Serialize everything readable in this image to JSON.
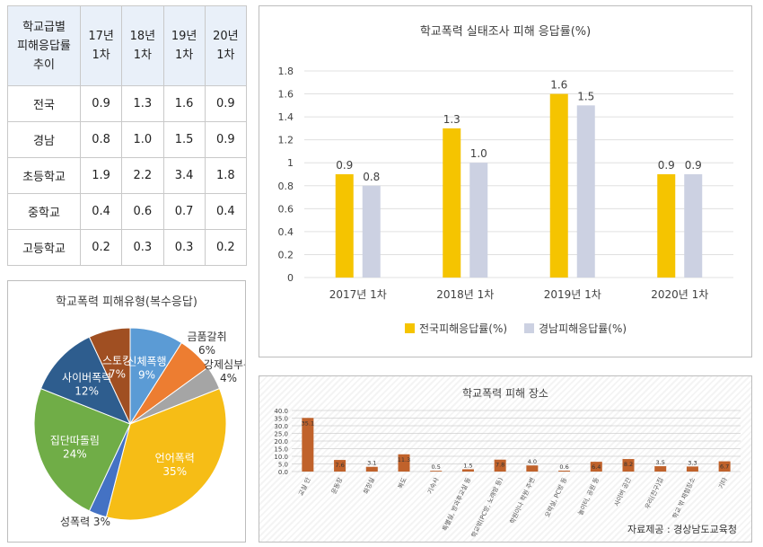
{
  "table": {
    "header": [
      "학교급별",
      "피해응답률",
      "추이"
    ],
    "columns": [
      [
        "17년",
        "1차"
      ],
      [
        "18년",
        "1차"
      ],
      [
        "19년",
        "1차"
      ],
      [
        "20년",
        "1차"
      ]
    ],
    "rows": [
      {
        "label": "전국",
        "values": [
          "0.9",
          "1.3",
          "1.6",
          "0.9"
        ]
      },
      {
        "label": "경남",
        "values": [
          "0.8",
          "1.0",
          "1.5",
          "0.9"
        ]
      },
      {
        "label": "초등학교",
        "values": [
          "1.9",
          "2.2",
          "3.4",
          "1.8"
        ]
      },
      {
        "label": "중학교",
        "values": [
          "0.4",
          "0.6",
          "0.7",
          "0.4"
        ]
      },
      {
        "label": "고등학교",
        "values": [
          "0.2",
          "0.3",
          "0.3",
          "0.2"
        ]
      }
    ]
  },
  "chart_data": [
    {
      "type": "bar",
      "title": "학교폭력 실태조사 피해 응답률(%)",
      "categories": [
        "2017년 1차",
        "2018년 1차",
        "2019년 1차",
        "2020년 1차"
      ],
      "series": [
        {
          "name": "전국피해응답률(%)",
          "values": [
            0.9,
            1.3,
            1.6,
            0.9
          ],
          "labels": [
            "0.9",
            "1.3",
            "1.6",
            "0.9"
          ],
          "color": "#f5c400"
        },
        {
          "name": "경남피해응답률(%)",
          "values": [
            0.8,
            1.0,
            1.5,
            0.9
          ],
          "labels": [
            "0.8",
            "1.0",
            "1.5",
            "0.9"
          ],
          "color": "#ccd1e2"
        }
      ],
      "ylim": [
        0,
        1.8
      ],
      "yticks": [
        "0",
        "0.2",
        "0.4",
        "0.6",
        "0.8",
        "1",
        "1.2",
        "1.4",
        "1.6",
        "1.8"
      ],
      "grid": true,
      "legend": "bottom"
    },
    {
      "type": "pie",
      "title": "학교폭력 피해유형(복수응답)",
      "slices": [
        {
          "label": "신체폭행",
          "pct_label": "9%",
          "value": 9,
          "color": "#5b9bd5"
        },
        {
          "label": "금품갈취",
          "pct_label": "6%",
          "value": 6,
          "color": "#ed7d31"
        },
        {
          "label": "강제심부름",
          "pct_label": "4%",
          "value": 4,
          "color": "#a5a5a5"
        },
        {
          "label": "언어폭력",
          "pct_label": "35%",
          "value": 35,
          "color": "#f6bd16"
        },
        {
          "label": "성폭력 3%",
          "pct_label": "",
          "value": 3,
          "color": "#4472c4"
        },
        {
          "label": "집단따돌림",
          "pct_label": "24%",
          "value": 24,
          "color": "#70ad47"
        },
        {
          "label": "사이버폭력",
          "pct_label": "12%",
          "value": 12,
          "color": "#2e5d8e"
        },
        {
          "label": "스토킹",
          "pct_label": "7%",
          "value": 7,
          "color": "#a04f22"
        }
      ]
    },
    {
      "type": "bar",
      "title": "학교폭력 피해 장소",
      "categories": [
        "교실 안",
        "운동장",
        "화장실",
        "복도",
        "기숙사",
        "특별실, 방과후교실 등",
        "학교밖(PC방, 노래방 등)",
        "학원이나 학원 주변",
        "오락실, PC방 등",
        "놀이터, 공원 등",
        "사이버 공간",
        "우리(친구)집",
        "학교 밖 체험장소",
        "기타"
      ],
      "values": [
        35.1,
        7.6,
        3.1,
        11.3,
        0.5,
        1.5,
        7.8,
        4.0,
        0.6,
        6.4,
        8.2,
        3.5,
        3.3,
        6.7
      ],
      "labels": [
        "35.1",
        "7.6",
        "3.1",
        "11.3",
        "0.5",
        "1.5",
        "7.8",
        "4.0",
        "0.6",
        "6.4",
        "8.2",
        "3.5",
        "3.3",
        "6.7"
      ],
      "ylim": [
        0,
        40
      ],
      "yticks": [
        "0.0",
        "5.0",
        "10.0",
        "15.0",
        "20.0",
        "25.0",
        "30.0",
        "35.0",
        "40.0"
      ],
      "color": "#c0622b",
      "grid": true
    }
  ],
  "source": "자료제공 : 경상남도교육청"
}
